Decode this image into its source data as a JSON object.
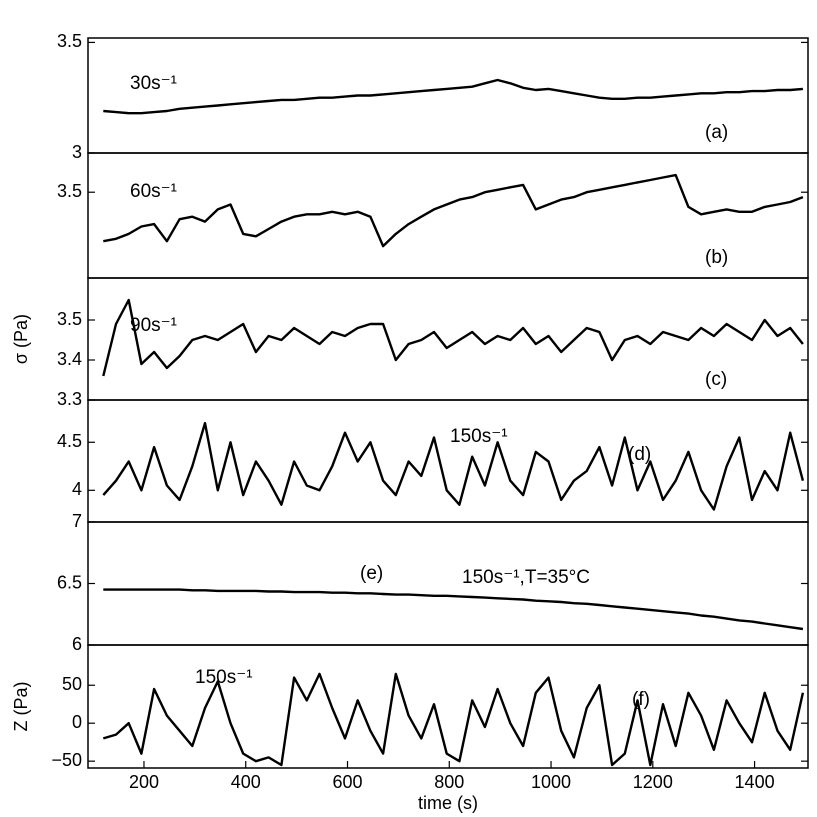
{
  "chart_data": [
    {
      "type": "line",
      "annotations": [
        "30s⁻¹",
        "(a)"
      ],
      "x": [
        120,
        145,
        170,
        195,
        220,
        245,
        270,
        295,
        320,
        345,
        370,
        395,
        420,
        445,
        470,
        495,
        520,
        545,
        570,
        595,
        620,
        645,
        670,
        695,
        720,
        745,
        770,
        795,
        820,
        845,
        870,
        895,
        920,
        945,
        970,
        995,
        1020,
        1045,
        1070,
        1095,
        1120,
        1145,
        1170,
        1195,
        1220,
        1245,
        1270,
        1295,
        1320,
        1345,
        1370,
        1395,
        1420,
        1445,
        1470,
        1495
      ],
      "series": [
        {
          "color": "#000000",
          "values": [
            3.19,
            3.185,
            3.18,
            3.18,
            3.185,
            3.19,
            3.2,
            3.205,
            3.21,
            3.215,
            3.22,
            3.225,
            3.23,
            3.235,
            3.24,
            3.24,
            3.245,
            3.25,
            3.25,
            3.255,
            3.26,
            3.26,
            3.265,
            3.27,
            3.275,
            3.28,
            3.285,
            3.29,
            3.295,
            3.3,
            3.315,
            3.33,
            3.315,
            3.295,
            3.285,
            3.29,
            3.28,
            3.27,
            3.26,
            3.25,
            3.245,
            3.245,
            3.25,
            3.25,
            3.255,
            3.26,
            3.265,
            3.27,
            3.27,
            3.275,
            3.275,
            3.28,
            3.28,
            3.285,
            3.285,
            3.29
          ]
        }
      ],
      "xlim": [
        90,
        1505
      ],
      "ylim": [
        3,
        3.52
      ],
      "yticks": [
        3,
        3.5
      ]
    },
    {
      "type": "line",
      "annotations": [
        "60s⁻¹",
        "(b)"
      ],
      "x": [
        120,
        145,
        170,
        195,
        220,
        245,
        270,
        295,
        320,
        345,
        370,
        395,
        420,
        445,
        470,
        495,
        520,
        545,
        570,
        595,
        620,
        645,
        670,
        695,
        720,
        745,
        770,
        795,
        820,
        845,
        870,
        895,
        920,
        945,
        970,
        995,
        1020,
        1045,
        1070,
        1095,
        1120,
        1145,
        1170,
        1195,
        1220,
        1245,
        1270,
        1295,
        1320,
        1345,
        1370,
        1395,
        1420,
        1445,
        1470,
        1495
      ],
      "series": [
        {
          "color": "#000000",
          "values": [
            3.3,
            3.31,
            3.33,
            3.36,
            3.37,
            3.3,
            3.39,
            3.4,
            3.38,
            3.43,
            3.45,
            3.33,
            3.32,
            3.35,
            3.38,
            3.4,
            3.41,
            3.41,
            3.42,
            3.41,
            3.42,
            3.4,
            3.28,
            3.33,
            3.37,
            3.4,
            3.43,
            3.45,
            3.47,
            3.48,
            3.5,
            3.51,
            3.52,
            3.53,
            3.43,
            3.45,
            3.47,
            3.48,
            3.5,
            3.51,
            3.52,
            3.53,
            3.54,
            3.55,
            3.56,
            3.57,
            3.44,
            3.41,
            3.42,
            3.43,
            3.42,
            3.42,
            3.44,
            3.45,
            3.46,
            3.48
          ]
        }
      ],
      "xlim": [
        90,
        1505
      ],
      "ylim": [
        3.15,
        3.66
      ],
      "yticks": [
        3.5
      ]
    },
    {
      "type": "line",
      "annotations": [
        "90s⁻¹",
        "(c)"
      ],
      "ylabel": "σ (Pa)",
      "x": [
        120,
        145,
        170,
        195,
        220,
        245,
        270,
        295,
        320,
        345,
        370,
        395,
        420,
        445,
        470,
        495,
        520,
        545,
        570,
        595,
        620,
        645,
        670,
        695,
        720,
        745,
        770,
        795,
        820,
        845,
        870,
        895,
        920,
        945,
        970,
        995,
        1020,
        1045,
        1070,
        1095,
        1120,
        1145,
        1170,
        1195,
        1220,
        1245,
        1270,
        1295,
        1320,
        1345,
        1370,
        1395,
        1420,
        1445,
        1470,
        1495
      ],
      "series": [
        {
          "color": "#000000",
          "values": [
            3.36,
            3.49,
            3.55,
            3.39,
            3.42,
            3.38,
            3.41,
            3.45,
            3.46,
            3.45,
            3.47,
            3.49,
            3.42,
            3.46,
            3.45,
            3.48,
            3.46,
            3.44,
            3.47,
            3.46,
            3.48,
            3.49,
            3.49,
            3.4,
            3.44,
            3.45,
            3.47,
            3.43,
            3.45,
            3.47,
            3.44,
            3.46,
            3.45,
            3.48,
            3.44,
            3.46,
            3.42,
            3.45,
            3.48,
            3.47,
            3.4,
            3.45,
            3.46,
            3.44,
            3.47,
            3.46,
            3.45,
            3.48,
            3.46,
            3.49,
            3.47,
            3.45,
            3.5,
            3.46,
            3.48,
            3.44
          ]
        }
      ],
      "xlim": [
        90,
        1505
      ],
      "ylim": [
        3.3,
        3.605
      ],
      "yticks": [
        3.3,
        3.4,
        3.5
      ]
    },
    {
      "type": "line",
      "annotations": [
        "150s⁻¹",
        "(d)"
      ],
      "x": [
        120,
        145,
        170,
        195,
        220,
        245,
        270,
        295,
        320,
        345,
        370,
        395,
        420,
        445,
        470,
        495,
        520,
        545,
        570,
        595,
        620,
        645,
        670,
        695,
        720,
        745,
        770,
        795,
        820,
        845,
        870,
        895,
        920,
        945,
        970,
        995,
        1020,
        1045,
        1070,
        1095,
        1120,
        1145,
        1170,
        1195,
        1220,
        1245,
        1270,
        1295,
        1320,
        1345,
        1370,
        1395,
        1420,
        1445,
        1470,
        1495
      ],
      "series": [
        {
          "color": "#000000",
          "values": [
            3.95,
            4.1,
            4.3,
            4.0,
            4.45,
            4.05,
            3.9,
            4.25,
            4.7,
            4.0,
            4.5,
            3.95,
            4.3,
            4.1,
            3.85,
            4.3,
            4.05,
            4.0,
            4.25,
            4.6,
            4.3,
            4.5,
            4.1,
            3.95,
            4.3,
            4.15,
            4.55,
            4.0,
            3.85,
            4.35,
            4.05,
            4.5,
            4.1,
            3.95,
            4.4,
            4.3,
            3.9,
            4.1,
            4.2,
            4.45,
            4.05,
            4.55,
            4.0,
            4.3,
            3.9,
            4.1,
            4.4,
            4.0,
            3.8,
            4.25,
            4.55,
            3.9,
            4.2,
            4.0,
            4.6,
            4.1
          ]
        }
      ],
      "xlim": [
        90,
        1505
      ],
      "ylim": [
        3.67,
        4.94
      ],
      "yticks": [
        4,
        4.5
      ]
    },
    {
      "type": "line",
      "annotations": [
        "(e)",
        "150s⁻¹,T=35°C"
      ],
      "x": [
        120,
        145,
        170,
        195,
        220,
        245,
        270,
        295,
        320,
        345,
        370,
        395,
        420,
        445,
        470,
        495,
        520,
        545,
        570,
        595,
        620,
        645,
        670,
        695,
        720,
        745,
        770,
        795,
        820,
        845,
        870,
        895,
        920,
        945,
        970,
        995,
        1020,
        1045,
        1070,
        1095,
        1120,
        1145,
        1170,
        1195,
        1220,
        1245,
        1270,
        1295,
        1320,
        1345,
        1370,
        1395,
        1420,
        1445,
        1470,
        1495
      ],
      "series": [
        {
          "color": "#000000",
          "values": [
            6.45,
            6.45,
            6.45,
            6.45,
            6.45,
            6.45,
            6.45,
            6.445,
            6.445,
            6.44,
            6.44,
            6.44,
            6.44,
            6.435,
            6.435,
            6.43,
            6.43,
            6.43,
            6.425,
            6.425,
            6.42,
            6.42,
            6.415,
            6.41,
            6.41,
            6.405,
            6.4,
            6.4,
            6.395,
            6.39,
            6.385,
            6.38,
            6.375,
            6.37,
            6.36,
            6.355,
            6.35,
            6.34,
            6.335,
            6.325,
            6.315,
            6.305,
            6.295,
            6.285,
            6.275,
            6.265,
            6.255,
            6.24,
            6.23,
            6.215,
            6.2,
            6.19,
            6.175,
            6.16,
            6.145,
            6.13
          ]
        }
      ],
      "xlim": [
        90,
        1505
      ],
      "ylim": [
        6,
        7
      ],
      "yticks": [
        6,
        6.5,
        7
      ]
    },
    {
      "type": "line",
      "annotations": [
        "150s⁻¹",
        "(f)"
      ],
      "ylabel": "Z (Pa)",
      "xlabel": "time (s)",
      "x": [
        120,
        145,
        170,
        195,
        220,
        245,
        270,
        295,
        320,
        345,
        370,
        395,
        420,
        445,
        470,
        495,
        520,
        545,
        570,
        595,
        620,
        645,
        670,
        695,
        720,
        745,
        770,
        795,
        820,
        845,
        870,
        895,
        920,
        945,
        970,
        995,
        1020,
        1045,
        1070,
        1095,
        1120,
        1145,
        1170,
        1195,
        1220,
        1245,
        1270,
        1295,
        1320,
        1345,
        1370,
        1395,
        1420,
        1445,
        1470,
        1495
      ],
      "series": [
        {
          "color": "#000000",
          "values": [
            -20,
            -15,
            0,
            -40,
            45,
            10,
            -10,
            -30,
            20,
            55,
            0,
            -40,
            -50,
            -45,
            -55,
            60,
            30,
            65,
            20,
            -20,
            30,
            -10,
            -40,
            65,
            10,
            -20,
            25,
            -40,
            -50,
            30,
            -5,
            45,
            0,
            -30,
            40,
            60,
            -10,
            -45,
            20,
            50,
            -55,
            -40,
            30,
            -55,
            25,
            -30,
            40,
            10,
            -35,
            30,
            0,
            -25,
            40,
            -10,
            -35,
            40
          ]
        }
      ],
      "xlim": [
        90,
        1505
      ],
      "ylim": [
        -59,
        103
      ],
      "yticks": [
        {
          "value": -50,
          "label": "−50"
        },
        0,
        50
      ],
      "xticks": [
        200,
        400,
        600,
        800,
        1000,
        1200,
        1400
      ]
    }
  ]
}
